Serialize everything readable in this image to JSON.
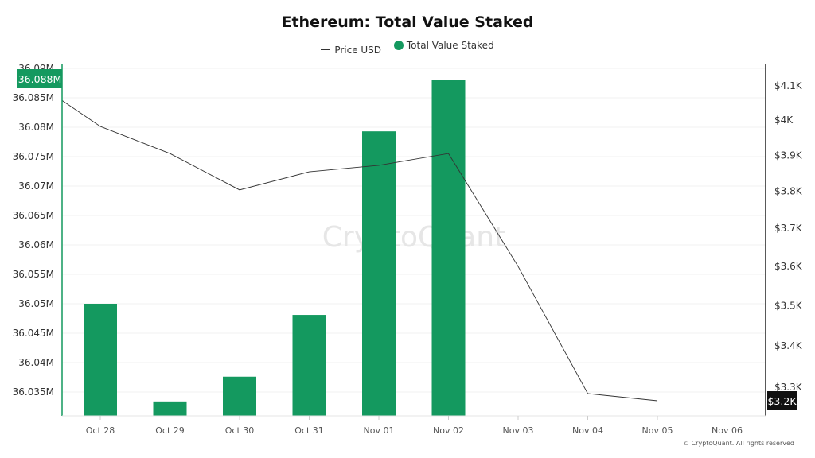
{
  "chart_data": {
    "type": "bar",
    "title": "Ethereum: Total Value Staked",
    "categories": [
      "Oct 28",
      "Oct 29",
      "Oct 30",
      "Oct 31",
      "Nov 01",
      "Nov 02",
      "Nov 03",
      "Nov 04",
      "Nov 05",
      "Nov 06"
    ],
    "series": [
      {
        "name": "Total Value Staked",
        "type": "bar",
        "axis": "left",
        "color": "#14995f",
        "values": [
          36.05,
          36.0334,
          36.0376,
          36.0481,
          36.0793,
          36.088,
          null,
          null,
          null,
          null
        ]
      },
      {
        "name": "Price USD",
        "type": "line",
        "axis": "right",
        "color": "#333333",
        "leading_point": {
          "x": "Oct 27",
          "value": 4120
        },
        "values": [
          3982,
          3905,
          3804,
          3854,
          3872,
          3905,
          3600,
          3285,
          3268,
          null
        ]
      }
    ],
    "left_axis": {
      "range": [
        36.031,
        36.09
      ],
      "unit": "M",
      "ticks": [
        "36.09M",
        "36.085M",
        "36.08M",
        "36.075M",
        "36.07M",
        "36.065M",
        "36.06M",
        "36.055M",
        "36.05M",
        "36.045M",
        "36.04M",
        "36.035M"
      ],
      "tick_values": [
        36.09,
        36.085,
        36.08,
        36.075,
        36.07,
        36.065,
        36.06,
        36.055,
        36.05,
        36.045,
        36.04,
        36.035
      ],
      "highlight_label": "36.088M"
    },
    "right_axis": {
      "scale": "log",
      "ticks": [
        "$4.1K",
        "$4K",
        "$3.9K",
        "$3.8K",
        "$3.7K",
        "$3.6K",
        "$3.5K",
        "$3.4K",
        "$3.3K"
      ],
      "tick_values": [
        4100,
        4000,
        3900,
        3800,
        3700,
        3600,
        3500,
        3400,
        3300
      ],
      "highlight_label": "$3.2K"
    },
    "grid": true,
    "legend": "top-center"
  },
  "legend": {
    "price": "Price USD",
    "tvs": "Total Value Staked"
  },
  "watermark": "CryptoQuant",
  "copyright": "© CryptoQuant. All rights reserved"
}
